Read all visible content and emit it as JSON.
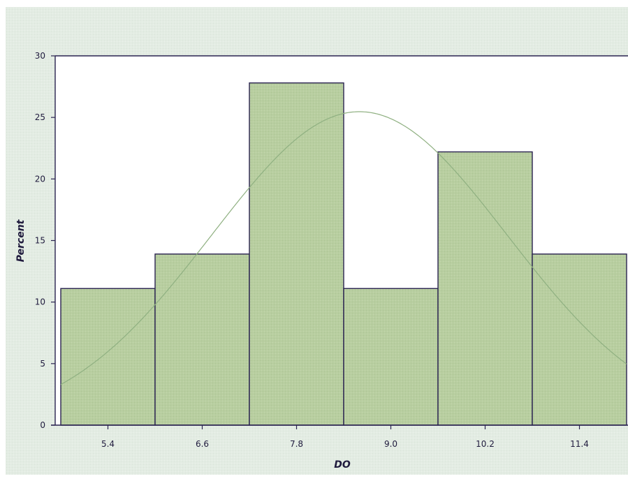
{
  "colors": {
    "background": "#e3ece3",
    "bar_fill": "#b8cea0",
    "bar_stroke": "#2a2350",
    "curve": "#8fb081",
    "axis_text": "#1f1a3d"
  },
  "chart_data": {
    "type": "bar",
    "xlabel": "DO",
    "ylabel": "Percent",
    "categories": [
      "5.4",
      "6.6",
      "7.8",
      "9.0",
      "10.2",
      "11.4"
    ],
    "values": [
      11.1,
      13.9,
      27.8,
      11.1,
      22.2,
      13.9
    ],
    "bin_width": 1.2,
    "ylim": [
      0,
      30
    ],
    "yticks": [
      0,
      5,
      10,
      15,
      20,
      25,
      30
    ],
    "normal_curve": {
      "mean": 8.6,
      "sd": 1.88
    },
    "grid": false
  }
}
